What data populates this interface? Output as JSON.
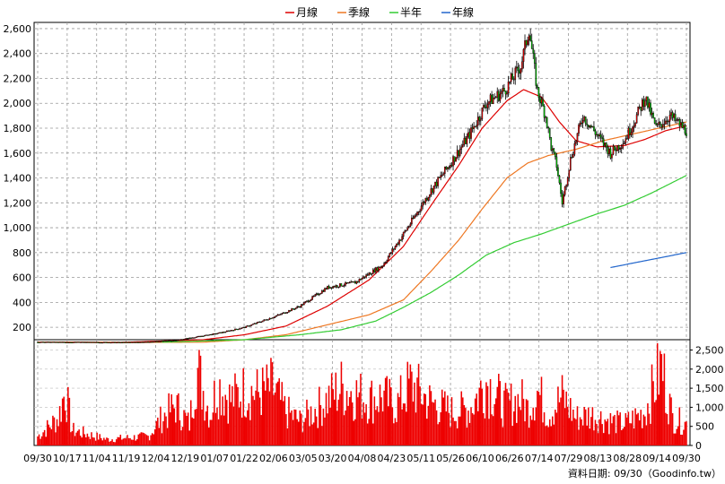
{
  "chart_data": {
    "type": "candlestick",
    "legend": [
      {
        "name": "月線",
        "color": "#dd0000"
      },
      {
        "name": "季線",
        "color": "#ee7722"
      },
      {
        "name": "半年",
        "color": "#33cc33"
      },
      {
        "name": "年線",
        "color": "#2266cc"
      }
    ],
    "price_axis": {
      "ticks": [
        "2,600",
        "2,400",
        "2,200",
        "2,000",
        "1,800",
        "1,600",
        "1,400",
        "1,200",
        "1,000",
        "800",
        "600",
        "400",
        "200"
      ],
      "min": 100,
      "max": 2650
    },
    "volume_axis": {
      "ticks": [
        "2,500",
        "2,000",
        "1,500",
        "1,000",
        "500",
        "0"
      ],
      "min": 0,
      "max": 2700
    },
    "x_labels": [
      "09/30",
      "10/17",
      "11/04",
      "11/19",
      "12/04",
      "12/19",
      "01/07",
      "01/22",
      "02/06",
      "03/05",
      "03/20",
      "04/08",
      "04/23",
      "05/11",
      "05/26",
      "06/10",
      "06/26",
      "07/14",
      "07/29",
      "08/13",
      "08/28",
      "09/14",
      "09/30"
    ],
    "close_anchors": [
      [
        0,
        80
      ],
      [
        30,
        80
      ],
      [
        60,
        78
      ],
      [
        80,
        82
      ],
      [
        100,
        95
      ],
      [
        130,
        150
      ],
      [
        150,
        200
      ],
      [
        175,
        300
      ],
      [
        190,
        370
      ],
      [
        210,
        520
      ],
      [
        230,
        560
      ],
      [
        250,
        700
      ],
      [
        268,
        1000
      ],
      [
        285,
        1300
      ],
      [
        298,
        1500
      ],
      [
        313,
        1750
      ],
      [
        325,
        2000
      ],
      [
        338,
        2100
      ],
      [
        350,
        2300
      ],
      [
        356,
        2600
      ],
      [
        362,
        2100
      ],
      [
        368,
        1900
      ],
      [
        372,
        1650
      ],
      [
        376,
        1500
      ],
      [
        380,
        1200
      ],
      [
        386,
        1550
      ],
      [
        395,
        1900
      ],
      [
        405,
        1750
      ],
      [
        415,
        1600
      ],
      [
        425,
        1700
      ],
      [
        432,
        1850
      ],
      [
        440,
        2050
      ],
      [
        448,
        1800
      ],
      [
        458,
        1900
      ],
      [
        470,
        1780
      ]
    ],
    "ma_month": [
      [
        0,
        80
      ],
      [
        60,
        78
      ],
      [
        120,
        100
      ],
      [
        150,
        140
      ],
      [
        180,
        210
      ],
      [
        210,
        370
      ],
      [
        240,
        580
      ],
      [
        265,
        850
      ],
      [
        285,
        1180
      ],
      [
        305,
        1500
      ],
      [
        322,
        1800
      ],
      [
        340,
        2020
      ],
      [
        352,
        2110
      ],
      [
        365,
        2050
      ],
      [
        378,
        1850
      ],
      [
        390,
        1700
      ],
      [
        405,
        1650
      ],
      [
        425,
        1660
      ],
      [
        440,
        1710
      ],
      [
        455,
        1780
      ],
      [
        470,
        1820
      ]
    ],
    "ma_quarter": [
      [
        0,
        80
      ],
      [
        60,
        78
      ],
      [
        120,
        80
      ],
      [
        150,
        100
      ],
      [
        180,
        140
      ],
      [
        210,
        220
      ],
      [
        240,
        300
      ],
      [
        265,
        420
      ],
      [
        285,
        650
      ],
      [
        305,
        900
      ],
      [
        322,
        1150
      ],
      [
        340,
        1400
      ],
      [
        355,
        1520
      ],
      [
        370,
        1580
      ],
      [
        390,
        1630
      ],
      [
        410,
        1700
      ],
      [
        430,
        1750
      ],
      [
        450,
        1800
      ],
      [
        470,
        1850
      ]
    ],
    "ma_half": [
      [
        90,
        80
      ],
      [
        150,
        100
      ],
      [
        190,
        140
      ],
      [
        220,
        180
      ],
      [
        245,
        250
      ],
      [
        265,
        360
      ],
      [
        285,
        480
      ],
      [
        305,
        620
      ],
      [
        325,
        780
      ],
      [
        345,
        880
      ],
      [
        365,
        950
      ],
      [
        385,
        1030
      ],
      [
        405,
        1110
      ],
      [
        425,
        1180
      ],
      [
        445,
        1280
      ],
      [
        470,
        1420
      ]
    ],
    "ma_year": [
      [
        415,
        680
      ],
      [
        470,
        800
      ]
    ],
    "volume_anchors": [
      [
        0,
        300
      ],
      [
        15,
        900
      ],
      [
        20,
        1800
      ],
      [
        25,
        500
      ],
      [
        50,
        200
      ],
      [
        80,
        300
      ],
      [
        90,
        900
      ],
      [
        100,
        1300
      ],
      [
        110,
        700
      ],
      [
        115,
        2600
      ],
      [
        125,
        1000
      ],
      [
        130,
        2000
      ],
      [
        140,
        1500
      ],
      [
        150,
        1800
      ],
      [
        160,
        1700
      ],
      [
        170,
        1900
      ],
      [
        180,
        1100
      ],
      [
        190,
        800
      ],
      [
        205,
        1300
      ],
      [
        220,
        1900
      ],
      [
        240,
        1500
      ],
      [
        250,
        1600
      ],
      [
        260,
        1300
      ],
      [
        270,
        2000
      ],
      [
        285,
        1400
      ],
      [
        300,
        1100
      ],
      [
        313,
        1200
      ],
      [
        325,
        2100
      ],
      [
        338,
        1300
      ],
      [
        350,
        1500
      ],
      [
        355,
        1200
      ],
      [
        362,
        1800
      ],
      [
        370,
        1000
      ],
      [
        380,
        1600
      ],
      [
        390,
        900
      ],
      [
        400,
        1000
      ],
      [
        415,
        800
      ],
      [
        425,
        700
      ],
      [
        440,
        1100
      ],
      [
        452,
        2600
      ],
      [
        460,
        900
      ],
      [
        470,
        700
      ]
    ],
    "footer": "資料日期: 09/30（Goodinfo.tw）"
  }
}
